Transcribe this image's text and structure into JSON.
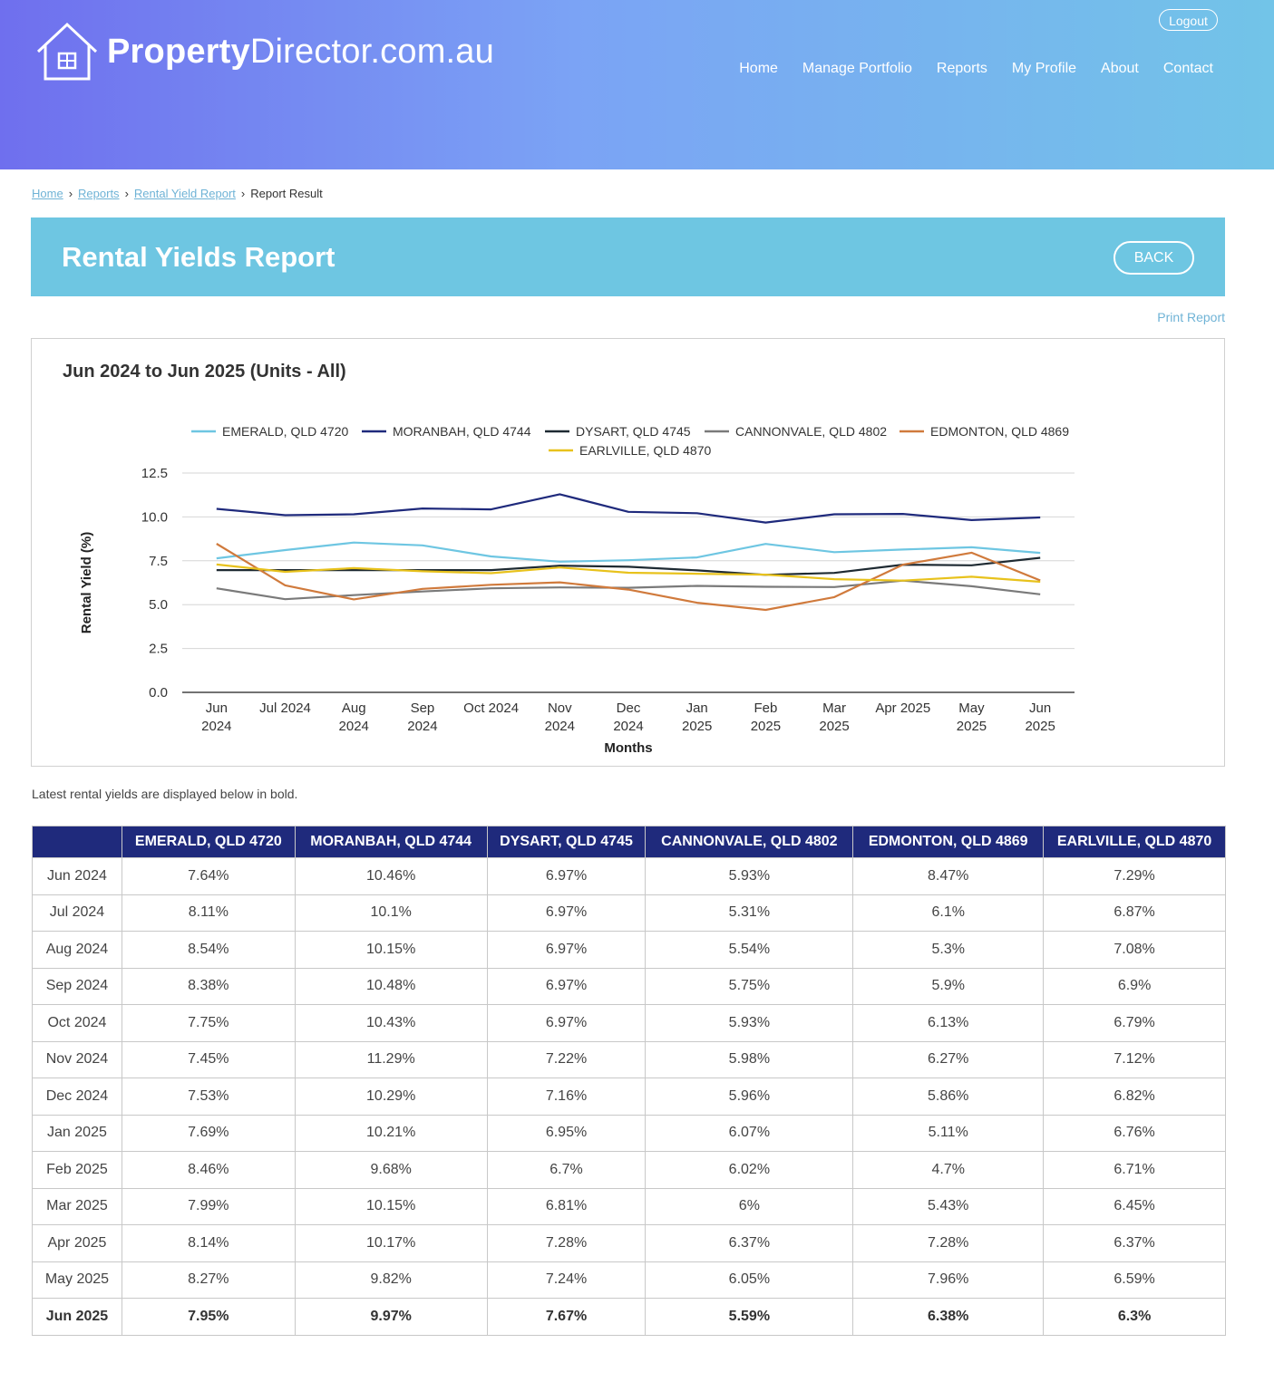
{
  "header": {
    "logo_bold": "Property",
    "logo_light": "Director.com.au",
    "logout": "Logout",
    "nav": [
      "Home",
      "Manage Portfolio",
      "Reports",
      "My Profile",
      "About",
      "Contact"
    ]
  },
  "breadcrumb": {
    "items": [
      "Home",
      "Reports",
      "Rental Yield Report"
    ],
    "current": "Report Result"
  },
  "banner": {
    "title": "Rental Yields Report",
    "back": "BACK"
  },
  "print_report": "Print Report",
  "chart_data": {
    "type": "line",
    "title": "Jun 2024 to Jun 2025 (Units - All)",
    "xlabel": "Months",
    "ylabel": "Rental Yield (%)",
    "ylim": [
      0,
      12.5
    ],
    "yticks": [
      "0.0",
      "2.5",
      "5.0",
      "7.5",
      "10.0",
      "12.5"
    ],
    "grid": true,
    "legend": "top",
    "categories": [
      [
        "Jun",
        "2024"
      ],
      [
        "Jul 2024"
      ],
      [
        "Aug",
        "2024"
      ],
      [
        "Sep",
        "2024"
      ],
      [
        "Oct 2024"
      ],
      [
        "Nov",
        "2024"
      ],
      [
        "Dec",
        "2024"
      ],
      [
        "Jan",
        "2025"
      ],
      [
        "Feb",
        "2025"
      ],
      [
        "Mar",
        "2025"
      ],
      [
        "Apr 2025"
      ],
      [
        "May",
        "2025"
      ],
      [
        "Jun",
        "2025"
      ]
    ],
    "series": [
      {
        "name": "EMERALD, QLD 4720",
        "color": "#6ec6e2",
        "values": [
          7.64,
          8.11,
          8.54,
          8.38,
          7.75,
          7.45,
          7.53,
          7.69,
          8.46,
          7.99,
          8.14,
          8.27,
          7.95
        ]
      },
      {
        "name": "MORANBAH, QLD 4744",
        "color": "#1f2a7c",
        "values": [
          10.46,
          10.1,
          10.15,
          10.48,
          10.43,
          11.29,
          10.29,
          10.21,
          9.68,
          10.15,
          10.17,
          9.82,
          9.97
        ]
      },
      {
        "name": "DYSART, QLD 4745",
        "color": "#1e2a32",
        "values": [
          6.97,
          6.97,
          6.97,
          6.97,
          6.97,
          7.22,
          7.16,
          6.95,
          6.7,
          6.81,
          7.28,
          7.24,
          7.67
        ]
      },
      {
        "name": "CANNONVALE, QLD 4802",
        "color": "#7a7a7a",
        "values": [
          5.93,
          5.31,
          5.54,
          5.75,
          5.93,
          5.98,
          5.96,
          6.07,
          6.02,
          6.0,
          6.37,
          6.05,
          5.59
        ]
      },
      {
        "name": "EDMONTON, QLD 4869",
        "color": "#d07a3c",
        "values": [
          8.47,
          6.1,
          5.3,
          5.9,
          6.13,
          6.27,
          5.86,
          5.11,
          4.7,
          5.43,
          7.28,
          7.96,
          6.38
        ]
      },
      {
        "name": "EARLVILLE, QLD 4870",
        "color": "#e8c21c",
        "values": [
          7.29,
          6.87,
          7.08,
          6.9,
          6.79,
          7.12,
          6.82,
          6.76,
          6.71,
          6.45,
          6.37,
          6.59,
          6.3
        ]
      }
    ]
  },
  "table": {
    "note": "Latest rental yields are displayed below in bold.",
    "headers": [
      "",
      "EMERALD, QLD 4720",
      "MORANBAH, QLD 4744",
      "DYSART, QLD 4745",
      "CANNONVALE, QLD 4802",
      "EDMONTON, QLD 4869",
      "EARLVILLE, QLD 4870"
    ],
    "rows": [
      [
        "Jun 2024",
        "7.64%",
        "10.46%",
        "6.97%",
        "5.93%",
        "8.47%",
        "7.29%"
      ],
      [
        "Jul 2024",
        "8.11%",
        "10.1%",
        "6.97%",
        "5.31%",
        "6.1%",
        "6.87%"
      ],
      [
        "Aug 2024",
        "8.54%",
        "10.15%",
        "6.97%",
        "5.54%",
        "5.3%",
        "7.08%"
      ],
      [
        "Sep 2024",
        "8.38%",
        "10.48%",
        "6.97%",
        "5.75%",
        "5.9%",
        "6.9%"
      ],
      [
        "Oct 2024",
        "7.75%",
        "10.43%",
        "6.97%",
        "5.93%",
        "6.13%",
        "6.79%"
      ],
      [
        "Nov 2024",
        "7.45%",
        "11.29%",
        "7.22%",
        "5.98%",
        "6.27%",
        "7.12%"
      ],
      [
        "Dec 2024",
        "7.53%",
        "10.29%",
        "7.16%",
        "5.96%",
        "5.86%",
        "6.82%"
      ],
      [
        "Jan 2025",
        "7.69%",
        "10.21%",
        "6.95%",
        "6.07%",
        "5.11%",
        "6.76%"
      ],
      [
        "Feb 2025",
        "8.46%",
        "9.68%",
        "6.7%",
        "6.02%",
        "4.7%",
        "6.71%"
      ],
      [
        "Mar 2025",
        "7.99%",
        "10.15%",
        "6.81%",
        "6%",
        "5.43%",
        "6.45%"
      ],
      [
        "Apr 2025",
        "8.14%",
        "10.17%",
        "7.28%",
        "6.37%",
        "7.28%",
        "6.37%"
      ],
      [
        "May 2025",
        "8.27%",
        "9.82%",
        "7.24%",
        "6.05%",
        "7.96%",
        "6.59%"
      ],
      [
        "Jun 2025",
        "7.95%",
        "9.97%",
        "7.67%",
        "5.59%",
        "6.38%",
        "6.3%"
      ]
    ]
  }
}
